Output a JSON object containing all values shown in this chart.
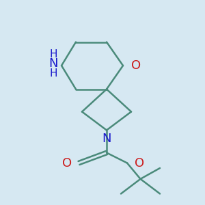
{
  "bg_color": "#d6e8f2",
  "bond_color": "#4a8a7a",
  "N_color": "#1a1acc",
  "O_color": "#cc1a1a",
  "line_width": 1.8,
  "font_size": 13,
  "small_font_size": 10,
  "figsize": [
    3.0,
    3.0
  ],
  "dpi": 100,
  "xlim": [
    0.0,
    1.0
  ],
  "ylim": [
    0.0,
    1.0
  ]
}
